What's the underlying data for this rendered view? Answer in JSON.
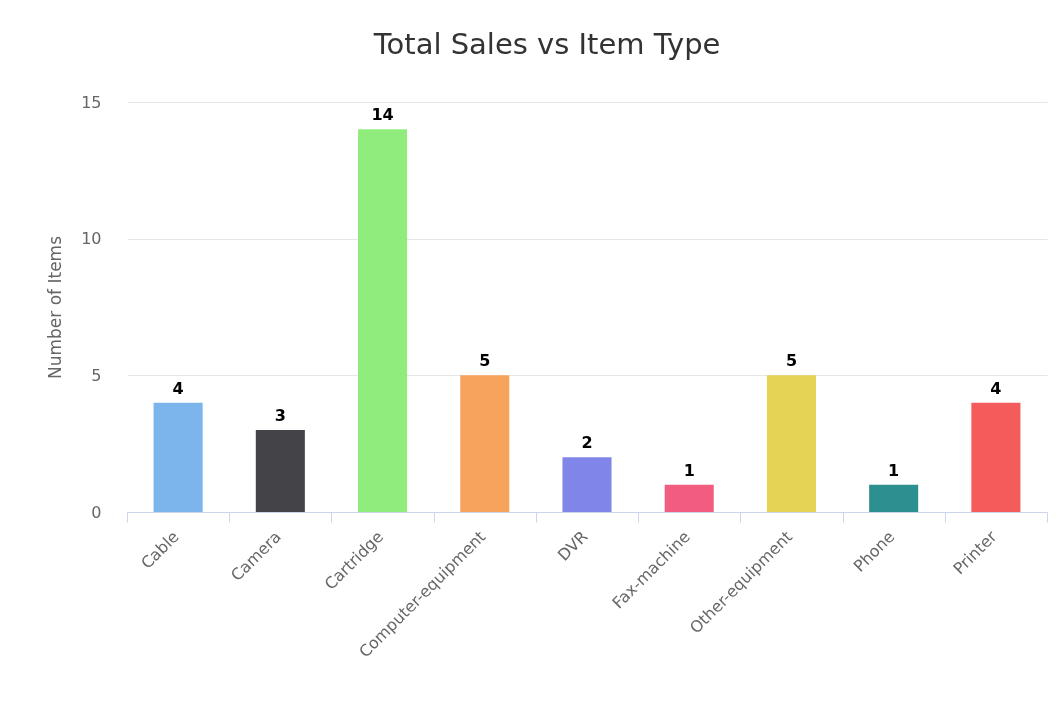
{
  "chart_data": {
    "type": "bar",
    "title": "Total Sales vs Item Type",
    "ylabel": "Number of Items",
    "categories": [
      "Cable",
      "Camera",
      "Cartridge",
      "Computer-equipment",
      "DVR",
      "Fax-machine",
      "Other-equipment",
      "Phone",
      "Printer"
    ],
    "values": [
      4,
      3,
      14,
      5,
      2,
      1,
      5,
      1,
      4
    ],
    "colors": [
      "#7cb5ec",
      "#434348",
      "#90ed7d",
      "#f7a35c",
      "#8085e9",
      "#f15c80",
      "#e4d354",
      "#2b908f",
      "#f45b5b"
    ],
    "ylim": [
      0,
      15
    ],
    "yticks": [
      0,
      5,
      10,
      15
    ],
    "grid": "y",
    "data_labels": true
  }
}
